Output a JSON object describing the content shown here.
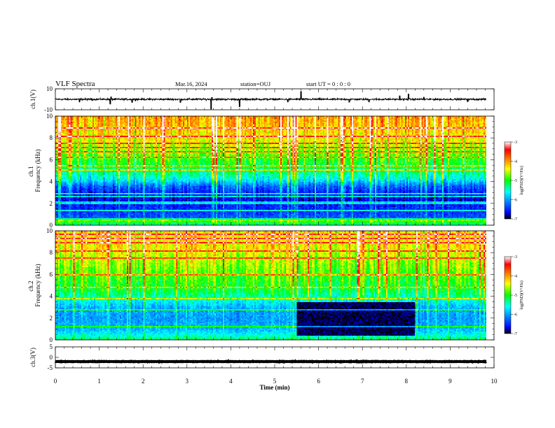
{
  "header": {
    "title": "VLF Spectra",
    "date": "Mar.16, 2024",
    "station": "station=OUJ",
    "start": "start  UT =  0 : 0 : 0"
  },
  "chart_data": [
    {
      "type": "line",
      "panel": "ch1-waveform",
      "ylabel": "ch.1(V)",
      "ylim": [
        -10,
        10
      ],
      "yticks": [
        "10",
        "-10"
      ],
      "xlim": [
        0,
        10
      ],
      "baseline": 0,
      "noise_amplitude": 1.2,
      "spikes": [
        {
          "t": 0.55,
          "v": -2.5
        },
        {
          "t": 1.25,
          "v": -4.5
        },
        {
          "t": 1.27,
          "v": 2.5
        },
        {
          "t": 1.75,
          "v": -3.0
        },
        {
          "t": 2.85,
          "v": -3.0
        },
        {
          "t": 3.55,
          "v": -9.5
        },
        {
          "t": 3.57,
          "v": 2.0
        },
        {
          "t": 4.2,
          "v": -7.0
        },
        {
          "t": 5.3,
          "v": -2.5
        },
        {
          "t": 5.6,
          "v": 7.5
        },
        {
          "t": 6.7,
          "v": -3.0
        },
        {
          "t": 7.15,
          "v": -2.5
        },
        {
          "t": 7.85,
          "v": 3.5
        },
        {
          "t": 8.05,
          "v": 5.0
        },
        {
          "t": 8.4,
          "v": 2.0
        },
        {
          "t": 9.4,
          "v": -2.5
        }
      ]
    },
    {
      "type": "heatmap",
      "panel": "ch1-spectrogram",
      "ylabel": "ch.1\nFrequency  (kHz)",
      "ylim": [
        0,
        10
      ],
      "yticks": [
        "0",
        "2",
        "4",
        "6",
        "8",
        "10"
      ],
      "xlim": [
        0,
        9.82
      ],
      "color_scale": {
        "label": "log(PSD)(V²/Hz)",
        "range": [
          -7,
          -3
        ],
        "ticks": [
          "-3",
          "-4",
          "-5",
          "-6",
          "-7"
        ]
      },
      "frequency_profile": [
        {
          "f": 0.0,
          "v": -5.4
        },
        {
          "f": 0.5,
          "v": -4.7
        },
        {
          "f": 0.7,
          "v": -6.3
        },
        {
          "f": 1.5,
          "v": -6.5
        },
        {
          "f": 2.5,
          "v": -6.7
        },
        {
          "f": 3.5,
          "v": -6.3
        },
        {
          "f": 4.2,
          "v": -5.6
        },
        {
          "f": 5.0,
          "v": -5.2
        },
        {
          "f": 6.0,
          "v": -4.9
        },
        {
          "f": 7.0,
          "v": -4.6
        },
        {
          "f": 8.0,
          "v": -4.3
        },
        {
          "f": 9.0,
          "v": -4.1
        },
        {
          "f": 10.0,
          "v": -4.0
        }
      ],
      "quiet_intervals": []
    },
    {
      "type": "heatmap",
      "panel": "ch2-spectrogram",
      "ylabel": "ch.2\nFrequency  (kHz)",
      "ylim": [
        0,
        10
      ],
      "yticks": [
        "0",
        "2",
        "4",
        "6",
        "8",
        "10"
      ],
      "xlim": [
        0,
        9.82
      ],
      "color_scale": {
        "label": "log(PSD)(V²/Hz)",
        "range": [
          -7,
          -3
        ],
        "ticks": [
          "-3",
          "-4",
          "-5",
          "-6",
          "-7"
        ]
      },
      "frequency_profile": [
        {
          "f": 0.0,
          "v": -5.2
        },
        {
          "f": 0.5,
          "v": -5.6
        },
        {
          "f": 1.0,
          "v": -5.9
        },
        {
          "f": 2.0,
          "v": -6.0
        },
        {
          "f": 3.0,
          "v": -5.9
        },
        {
          "f": 3.7,
          "v": -5.5
        },
        {
          "f": 4.5,
          "v": -5.1
        },
        {
          "f": 5.5,
          "v": -4.9
        },
        {
          "f": 6.5,
          "v": -4.7
        },
        {
          "f": 7.5,
          "v": -4.5
        },
        {
          "f": 8.5,
          "v": -4.3
        },
        {
          "f": 10.0,
          "v": -4.2
        }
      ],
      "quiet_intervals": [
        {
          "t0": 5.5,
          "t1": 8.2,
          "f0": 0.4,
          "f1": 3.5,
          "v": -6.9
        }
      ]
    },
    {
      "type": "line",
      "panel": "ch3-waveform",
      "ylabel": "ch.3(V)",
      "ylim": [
        -5,
        5
      ],
      "yticks": [
        "5",
        "0",
        "-5"
      ],
      "xlim": [
        0,
        10
      ],
      "baseline": -2,
      "noise_amplitude": 0.15,
      "spikes": []
    }
  ],
  "xaxis": {
    "label": "Time  (min)",
    "ticks": [
      "0",
      "1",
      "2",
      "3",
      "4",
      "5",
      "6",
      "7",
      "8",
      "9",
      "10"
    ]
  },
  "colors": {
    "scale": [
      "#000000",
      "#0000ff",
      "#00ffff",
      "#00ff00",
      "#ffff00",
      "#ff0000",
      "#ffffff"
    ]
  }
}
